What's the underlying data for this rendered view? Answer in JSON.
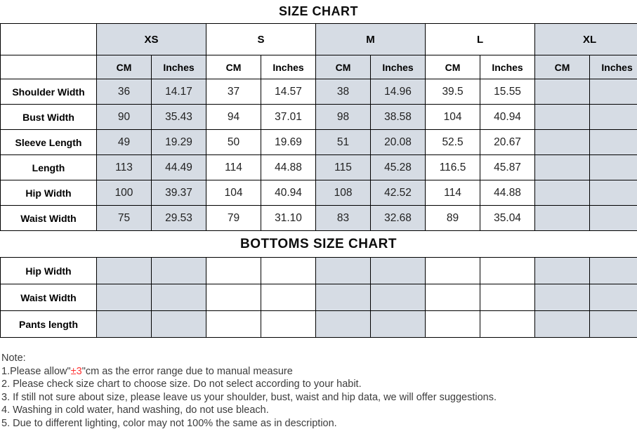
{
  "colors": {
    "shaded_cell": "#d6dce4",
    "border": "#000000",
    "note_red": "#ff3333"
  },
  "size_chart": {
    "title": "SIZE CHART",
    "sizes": [
      "XS",
      "S",
      "M",
      "L",
      "XL"
    ],
    "unit_headers": [
      "CM",
      "Inches"
    ],
    "rows": [
      {
        "label": "Shoulder Width",
        "values": [
          "36",
          "14.17",
          "37",
          "14.57",
          "38",
          "14.96",
          "39.5",
          "15.55",
          "",
          ""
        ]
      },
      {
        "label": "Bust Width",
        "values": [
          "90",
          "35.43",
          "94",
          "37.01",
          "98",
          "38.58",
          "104",
          "40.94",
          "",
          ""
        ]
      },
      {
        "label": "Sleeve Length",
        "values": [
          "49",
          "19.29",
          "50",
          "19.69",
          "51",
          "20.08",
          "52.5",
          "20.67",
          "",
          ""
        ]
      },
      {
        "label": "Length",
        "values": [
          "113",
          "44.49",
          "114",
          "44.88",
          "115",
          "45.28",
          "116.5",
          "45.87",
          "",
          ""
        ]
      },
      {
        "label": "Hip Width",
        "values": [
          "100",
          "39.37",
          "104",
          "40.94",
          "108",
          "42.52",
          "114",
          "44.88",
          "",
          ""
        ]
      },
      {
        "label": "Waist Width",
        "values": [
          "75",
          "29.53",
          "79",
          "31.10",
          "83",
          "32.68",
          "89",
          "35.04",
          "",
          ""
        ]
      }
    ]
  },
  "bottoms_chart": {
    "title": "BOTTOMS SIZE CHART",
    "rows": [
      {
        "label": "Hip Width",
        "values": [
          "",
          "",
          "",
          "",
          "",
          "",
          "",
          "",
          "",
          ""
        ]
      },
      {
        "label": "Waist Width",
        "values": [
          "",
          "",
          "",
          "",
          "",
          "",
          "",
          "",
          "",
          ""
        ]
      },
      {
        "label": "Pants length",
        "values": [
          "",
          "",
          "",
          "",
          "",
          "",
          "",
          "",
          "",
          ""
        ]
      }
    ]
  },
  "notes": {
    "heading": "Note:",
    "line1_prefix": "1.Please allow\"",
    "line1_red": "±3",
    "line1_suffix": "\"cm as the error range due to manual measure",
    "lines": [
      "2. Please check size chart to choose size. Do not select according to your habit.",
      "3. If still not sure about size, please leave us your shoulder, bust, waist and hip data, we will offer suggestions.",
      "4. Washing in cold water, hand washing, do not use bleach.",
      "5. Due to different lighting, color may not 100% the same as in description."
    ]
  },
  "chart_data": {
    "type": "table",
    "title": "SIZE CHART",
    "columns": [
      "",
      "XS CM",
      "XS Inches",
      "S CM",
      "S Inches",
      "M CM",
      "M Inches",
      "L CM",
      "L Inches",
      "XL CM",
      "XL Inches"
    ],
    "rows": [
      [
        "Shoulder Width",
        36,
        14.17,
        37,
        14.57,
        38,
        14.96,
        39.5,
        15.55,
        null,
        null
      ],
      [
        "Bust Width",
        90,
        35.43,
        94,
        37.01,
        98,
        38.58,
        104,
        40.94,
        null,
        null
      ],
      [
        "Sleeve Length",
        49,
        19.29,
        50,
        19.69,
        51,
        20.08,
        52.5,
        20.67,
        null,
        null
      ],
      [
        "Length",
        113,
        44.49,
        114,
        44.88,
        115,
        45.28,
        116.5,
        45.87,
        null,
        null
      ],
      [
        "Hip Width",
        100,
        39.37,
        104,
        40.94,
        108,
        42.52,
        114,
        44.88,
        null,
        null
      ],
      [
        "Waist Width",
        75,
        29.53,
        79,
        31.1,
        83,
        32.68,
        89,
        35.04,
        null,
        null
      ]
    ],
    "secondary_table": {
      "title": "BOTTOMS SIZE CHART",
      "rows": [
        [
          "Hip Width"
        ],
        [
          "Waist Width"
        ],
        [
          "Pants length"
        ]
      ],
      "note": "all value cells empty"
    }
  }
}
